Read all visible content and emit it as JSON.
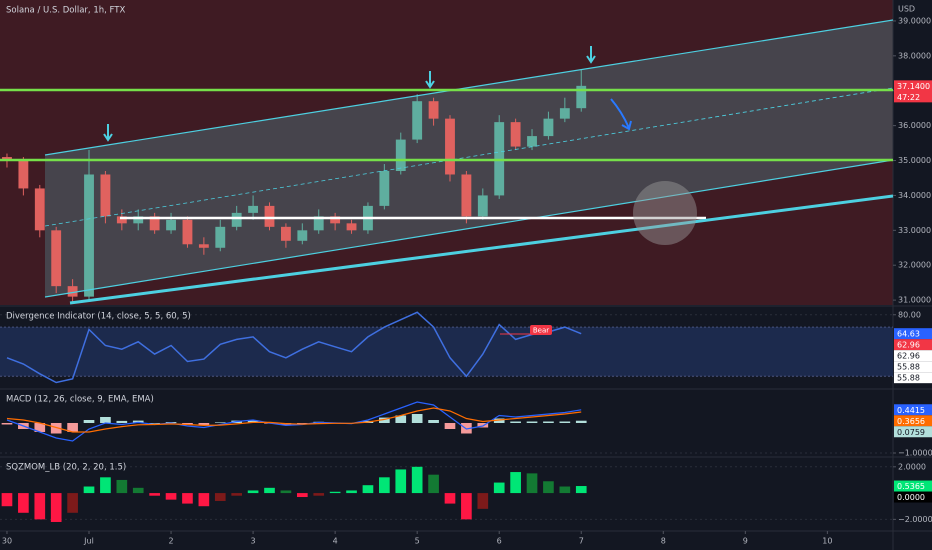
{
  "chart_data": [
    {
      "type": "candlestick",
      "title": "Solana / U.S. Dollar, 1h, FTX",
      "currency": "USD",
      "x": [
        0,
        0.2,
        0.4,
        0.6,
        0.8,
        1.0,
        1.2,
        1.4,
        1.6,
        1.8,
        2.0,
        2.2,
        2.4,
        2.6,
        2.8,
        3.0,
        3.2,
        3.4,
        3.6,
        3.8,
        4.0,
        4.2,
        4.4,
        4.6,
        4.8,
        5.0,
        5.2,
        5.4,
        5.6,
        5.8,
        6.0,
        6.2,
        6.4,
        6.6,
        6.8,
        7.0
      ],
      "open": [
        35.1,
        35.0,
        34.2,
        33.0,
        31.4,
        31.1,
        34.6,
        33.4,
        33.2,
        33.4,
        33.0,
        33.3,
        32.6,
        32.5,
        33.1,
        33.5,
        33.7,
        33.1,
        32.7,
        33.0,
        33.4,
        33.2,
        33.0,
        33.7,
        34.7,
        35.6,
        36.7,
        36.2,
        34.6,
        33.4,
        34.0,
        36.1,
        35.4,
        35.7,
        36.2,
        36.5
      ],
      "high": [
        35.2,
        35.1,
        34.3,
        33.1,
        31.6,
        35.3,
        34.7,
        33.6,
        33.6,
        33.5,
        33.5,
        33.4,
        32.8,
        33.3,
        33.7,
        34.0,
        33.8,
        33.2,
        33.2,
        33.6,
        33.5,
        33.3,
        33.8,
        34.9,
        35.8,
        36.9,
        36.8,
        36.3,
        34.7,
        34.2,
        36.3,
        36.2,
        35.9,
        36.4,
        36.8,
        37.6
      ],
      "low": [
        34.8,
        34.0,
        32.8,
        31.2,
        30.95,
        31.0,
        33.2,
        33.0,
        33.0,
        32.9,
        32.9,
        32.5,
        32.3,
        32.4,
        33.0,
        33.3,
        33.0,
        32.5,
        32.6,
        32.9,
        33.0,
        32.9,
        32.9,
        33.6,
        34.6,
        35.5,
        36.0,
        34.4,
        33.2,
        33.3,
        33.9,
        35.3,
        35.3,
        35.6,
        36.1,
        36.4
      ],
      "close": [
        35.0,
        34.2,
        33.0,
        31.4,
        31.1,
        34.6,
        33.4,
        33.2,
        33.4,
        33.0,
        33.3,
        32.6,
        32.5,
        33.1,
        33.5,
        33.7,
        33.1,
        32.7,
        33.0,
        33.4,
        33.2,
        33.0,
        33.7,
        34.7,
        35.6,
        36.7,
        36.2,
        34.6,
        33.4,
        34.0,
        36.1,
        35.4,
        35.7,
        36.2,
        36.5,
        37.14
      ],
      "colors": {
        "up": "#5fae9f",
        "down": "#e0625f"
      },
      "xlim": [
        -0.085,
        10.8
      ],
      "xticks": [
        {
          "value": 0,
          "label": "30"
        },
        {
          "value": 1,
          "label": "Jul"
        },
        2,
        3,
        4,
        5,
        6,
        7,
        8,
        9,
        10
      ],
      "ylim": [
        30.86,
        39.6
      ],
      "yticks": [
        {
          "value": 31,
          "label": "31.0000"
        },
        {
          "value": 32,
          "label": "32.0000"
        },
        {
          "value": 33,
          "label": "33.0000"
        },
        {
          "value": 34,
          "label": "34.0000"
        },
        {
          "value": 35,
          "label": "35.0000"
        },
        {
          "value": 36,
          "label": "36.0000"
        },
        {
          "value": 37,
          "label": "37.0000"
        },
        {
          "value": 38,
          "label": "38.0000"
        },
        {
          "value": 39,
          "label": "39.0000"
        }
      ],
      "tags": [
        {
          "value": 37.14,
          "label": "37.1400",
          "sublabel": "47:22",
          "color": "#f23645"
        }
      ]
    },
    {
      "type": "line",
      "title": "Divergence Indicator (14, close, 5, 5, 60, 5)",
      "annotation": "Bear",
      "x": [
        0,
        0.2,
        0.4,
        0.6,
        0.8,
        1.0,
        1.2,
        1.4,
        1.6,
        1.8,
        2.0,
        2.2,
        2.4,
        2.6,
        2.8,
        3.0,
        3.2,
        3.4,
        3.6,
        3.8,
        4.0,
        4.2,
        4.4,
        4.6,
        4.8,
        5.0,
        5.2,
        5.4,
        5.6,
        5.8,
        6.0,
        6.2,
        6.4,
        6.6,
        6.8,
        7.0
      ],
      "series": [
        {
          "color": "#3f6fe0",
          "values": [
            45,
            40,
            32,
            25,
            28,
            68,
            55,
            52,
            58,
            48,
            55,
            42,
            44,
            56,
            60,
            62,
            50,
            45,
            52,
            58,
            54,
            50,
            62,
            70,
            76,
            82,
            70,
            45,
            30,
            48,
            72,
            60,
            64,
            66,
            70,
            64.63
          ]
        }
      ],
      "band": [
        30,
        70
      ],
      "band_color": "#1c2a4d",
      "xlim": [
        -0.085,
        10.8
      ],
      "ylim": [
        20.5,
        86.3
      ],
      "yticks": [
        {
          "value": 80,
          "label": "80.00"
        }
      ],
      "tags": [
        {
          "value": 64.63,
          "label": "64.63",
          "color": "#2962ff"
        },
        {
          "value": 62.96,
          "label": "62.96",
          "color": "#f23645"
        },
        {
          "value": 62.96,
          "label": "62.96",
          "color": "#ffffff"
        },
        {
          "value": 55.88,
          "label": "55.88",
          "color": "#ffffff"
        },
        {
          "value": 55.88,
          "label": "55.88",
          "color": "#ffffff"
        }
      ]
    },
    {
      "type": "combo",
      "title": "MACD (12, 26, close, 9, EMA, EMA)",
      "x": [
        0,
        0.2,
        0.4,
        0.6,
        0.8,
        1.0,
        1.2,
        1.4,
        1.6,
        1.8,
        2.0,
        2.2,
        2.4,
        2.6,
        2.8,
        3.0,
        3.2,
        3.4,
        3.6,
        3.8,
        4.0,
        4.2,
        4.4,
        4.6,
        4.8,
        5.0,
        5.2,
        5.4,
        5.6,
        5.8,
        6.0,
        6.2,
        6.4,
        6.6,
        6.8,
        7.0
      ],
      "histogram": [
        -0.05,
        -0.2,
        -0.3,
        -0.35,
        -0.3,
        0.1,
        0.2,
        0.07,
        0.08,
        0,
        0.03,
        -0.05,
        -0.07,
        0.02,
        0.08,
        0.08,
        -0.02,
        -0.06,
        -0.01,
        0.04,
        0.01,
        -0.01,
        0.07,
        0.18,
        0.25,
        0.3,
        0.1,
        -0.2,
        -0.35,
        -0.15,
        0.15,
        0.05,
        0.05,
        0.05,
        0.05,
        0.0759
      ],
      "histogram_colors": {
        "up": "#b2dfdb",
        "down": "#f59a9a"
      },
      "series": [
        {
          "color": "#2962ff",
          "values": [
            0.1,
            -0.1,
            -0.3,
            -0.5,
            -0.6,
            -0.2,
            0,
            -0.05,
            0.02,
            -0.05,
            0,
            -0.1,
            -0.15,
            -0.05,
            0.05,
            0.1,
            0,
            -0.08,
            -0.05,
            0.02,
            0.0,
            -0.02,
            0.1,
            0.3,
            0.5,
            0.7,
            0.6,
            0.2,
            -0.2,
            -0.1,
            0.25,
            0.2,
            0.25,
            0.3,
            0.35,
            0.4415
          ]
        },
        {
          "color": "#ff6d00",
          "values": [
            0.15,
            0.1,
            0,
            -0.15,
            -0.3,
            -0.3,
            -0.2,
            -0.12,
            -0.06,
            -0.05,
            -0.03,
            -0.05,
            -0.08,
            -0.07,
            -0.03,
            0.02,
            0.02,
            -0.02,
            -0.04,
            -0.02,
            -0.01,
            -0.01,
            0.03,
            0.12,
            0.25,
            0.4,
            0.5,
            0.4,
            0.15,
            0.05,
            0.1,
            0.15,
            0.2,
            0.25,
            0.3,
            0.3656
          ]
        }
      ],
      "xlim": [
        -0.085,
        10.8
      ],
      "ylim": [
        -1.1,
        1.1
      ],
      "yticks": [
        {
          "value": -1,
          "label": "−1.0000"
        }
      ],
      "tags": [
        {
          "value": 0.4415,
          "label": "0.4415",
          "color": "#2962ff"
        },
        {
          "value": 0.3656,
          "label": "0.3656",
          "color": "#ff6d00"
        },
        {
          "value": 0.0759,
          "label": "0.0759",
          "color": "#b2dfdb"
        }
      ]
    },
    {
      "type": "histogram",
      "title": "SQZMOM_LB (20, 2, 20, 1.5)",
      "x": [
        0,
        0.2,
        0.4,
        0.6,
        0.8,
        1.0,
        1.2,
        1.4,
        1.6,
        1.8,
        2.0,
        2.2,
        2.4,
        2.6,
        2.8,
        3.0,
        3.2,
        3.4,
        3.6,
        3.8,
        4.0,
        4.2,
        4.4,
        4.6,
        4.8,
        5.0,
        5.2,
        5.4,
        5.6,
        5.8,
        6.0,
        6.2,
        6.4,
        6.6,
        6.8,
        7.0
      ],
      "values": [
        -1.0,
        -1.5,
        -2.0,
        -2.2,
        -1.5,
        0.5,
        1.2,
        1.0,
        0.4,
        -0.2,
        -0.5,
        -0.8,
        -1.0,
        -0.6,
        -0.2,
        0.2,
        0.4,
        0.2,
        -0.3,
        -0.2,
        0.1,
        0.2,
        0.6,
        1.2,
        1.8,
        2.0,
        1.4,
        -0.8,
        -2.0,
        -1.2,
        0.8,
        1.6,
        1.5,
        0.9,
        0.5,
        0.5365
      ],
      "histogram_colors": {
        "up": "#00e676",
        "up_fading": "#137a33",
        "down": "#ff1744",
        "down_fading": "#7d1a1a"
      },
      "xlim": [
        -0.085,
        10.8
      ],
      "ylim": [
        -2.81,
        2.67
      ],
      "yticks": [
        {
          "value": 2,
          "label": "2.0000"
        },
        {
          "value": -2,
          "label": "−2.0000"
        }
      ],
      "tags": [
        {
          "value": 0.5365,
          "label": "0.5365",
          "color": "#00e676"
        },
        {
          "value": 0,
          "label": "0.0000",
          "color": "#000000"
        }
      ]
    }
  ]
}
